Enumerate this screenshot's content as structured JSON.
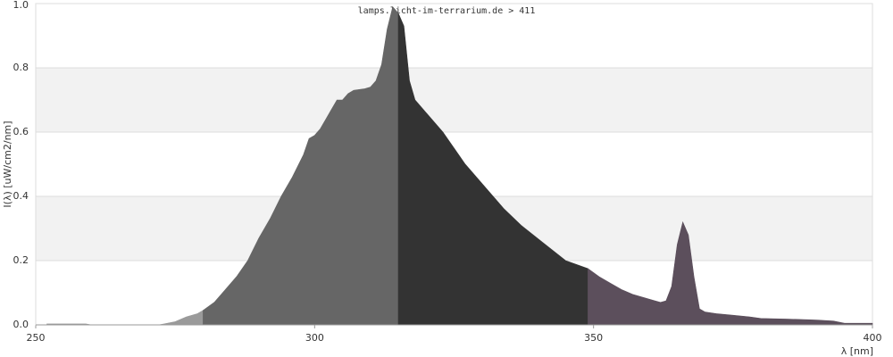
{
  "chart_data": {
    "type": "area",
    "title": "lamps.licht-im-terrarium.de > 411",
    "y_label": "I(λ) [uW/cm2/nm]",
    "x_label": "λ [nm]",
    "xlim": [
      250,
      400
    ],
    "ylim": [
      0,
      1
    ],
    "xticks": [
      250,
      300,
      350,
      400
    ],
    "yticks": [
      {
        "value": 0,
        "label": "0.0"
      },
      0.2,
      0.4,
      0.6,
      0.8,
      {
        "value": 1,
        "label": "1.0"
      }
    ],
    "grid": true,
    "series": [
      {
        "color": "#9a9a9a",
        "x": [
          252,
          259,
          260,
          272,
          273,
          275,
          277,
          279,
          280
        ],
        "values": [
          0.003,
          0.003,
          0,
          0,
          0.003,
          0.01,
          0.025,
          0.035,
          0.045
        ]
      },
      {
        "color": "#666666",
        "x": [
          280,
          282,
          284,
          286,
          288,
          290,
          292,
          294,
          296,
          298,
          299,
          300,
          301,
          302,
          303,
          304,
          305,
          306,
          307,
          309,
          310,
          311,
          312,
          313,
          314,
          315
        ],
        "values": [
          0.045,
          0.07,
          0.11,
          0.15,
          0.2,
          0.27,
          0.33,
          0.4,
          0.46,
          0.53,
          0.58,
          0.59,
          0.61,
          0.64,
          0.67,
          0.7,
          0.7,
          0.72,
          0.73,
          0.735,
          0.74,
          0.76,
          0.81,
          0.92,
          0.99,
          0.97
        ]
      },
      {
        "color": "#333333",
        "x": [
          315,
          316,
          317,
          318,
          319,
          320,
          323,
          327,
          331,
          334,
          337,
          341,
          345,
          349
        ],
        "values": [
          0.97,
          0.93,
          0.76,
          0.7,
          0.68,
          0.66,
          0.6,
          0.5,
          0.42,
          0.36,
          0.31,
          0.255,
          0.2,
          0.175
        ]
      },
      {
        "color": "#5c4f5c",
        "x": [
          349,
          351,
          353,
          355,
          357,
          359,
          361,
          362,
          363,
          364,
          365,
          366,
          367,
          368,
          369,
          370,
          372,
          375,
          378,
          380,
          385,
          390,
          393,
          395,
          400
        ],
        "values": [
          0.175,
          0.15,
          0.13,
          0.11,
          0.095,
          0.085,
          0.075,
          0.07,
          0.075,
          0.12,
          0.25,
          0.32,
          0.28,
          0.15,
          0.05,
          0.04,
          0.035,
          0.03,
          0.025,
          0.02,
          0.018,
          0.015,
          0.012,
          0.005,
          0.005
        ]
      }
    ]
  }
}
